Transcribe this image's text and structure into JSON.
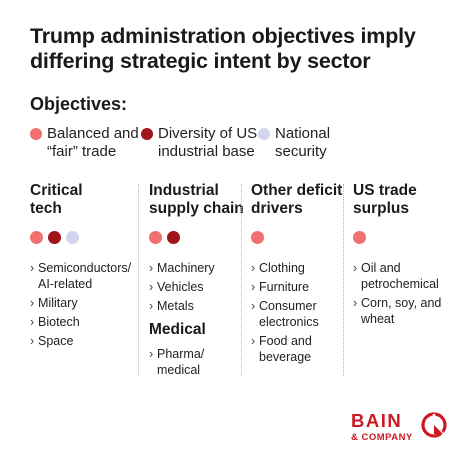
{
  "title": "Trump administration objectives imply differing strategic intent by sector",
  "objectives": {
    "heading": "Objectives:",
    "items": [
      {
        "label": "Balanced and “fair” trade",
        "color": "#f07070"
      },
      {
        "label": "Diversity of US industrial base",
        "color": "#a11219"
      },
      {
        "label": "National security",
        "color": "#d2d3ee"
      }
    ]
  },
  "columns": [
    {
      "heading": "Critical tech",
      "items": [
        "Semiconductors/",
        "AI-related",
        "Military",
        "Biotech",
        "Space"
      ]
    },
    {
      "heading": "Industrial supply chain",
      "items": [
        "Machinery",
        "Vehicles",
        "Metals"
      ],
      "sub_heading": "Medical",
      "sub_items": [
        "Pharma/",
        "medical"
      ]
    },
    {
      "heading": "Other deficit drivers",
      "items": [
        "Clothing",
        "Furniture",
        "Consumer",
        "electronics",
        "Food and",
        "beverage"
      ]
    },
    {
      "heading": "US trade surplus",
      "items": [
        "Oil and",
        "petrochemical",
        "Corn, soy, and",
        "wheat"
      ]
    }
  ],
  "logo": {
    "name": "BAIN",
    "sub": "& COMPANY",
    "color": "#cc1a22",
    "icon": "bain-logo-icon"
  }
}
